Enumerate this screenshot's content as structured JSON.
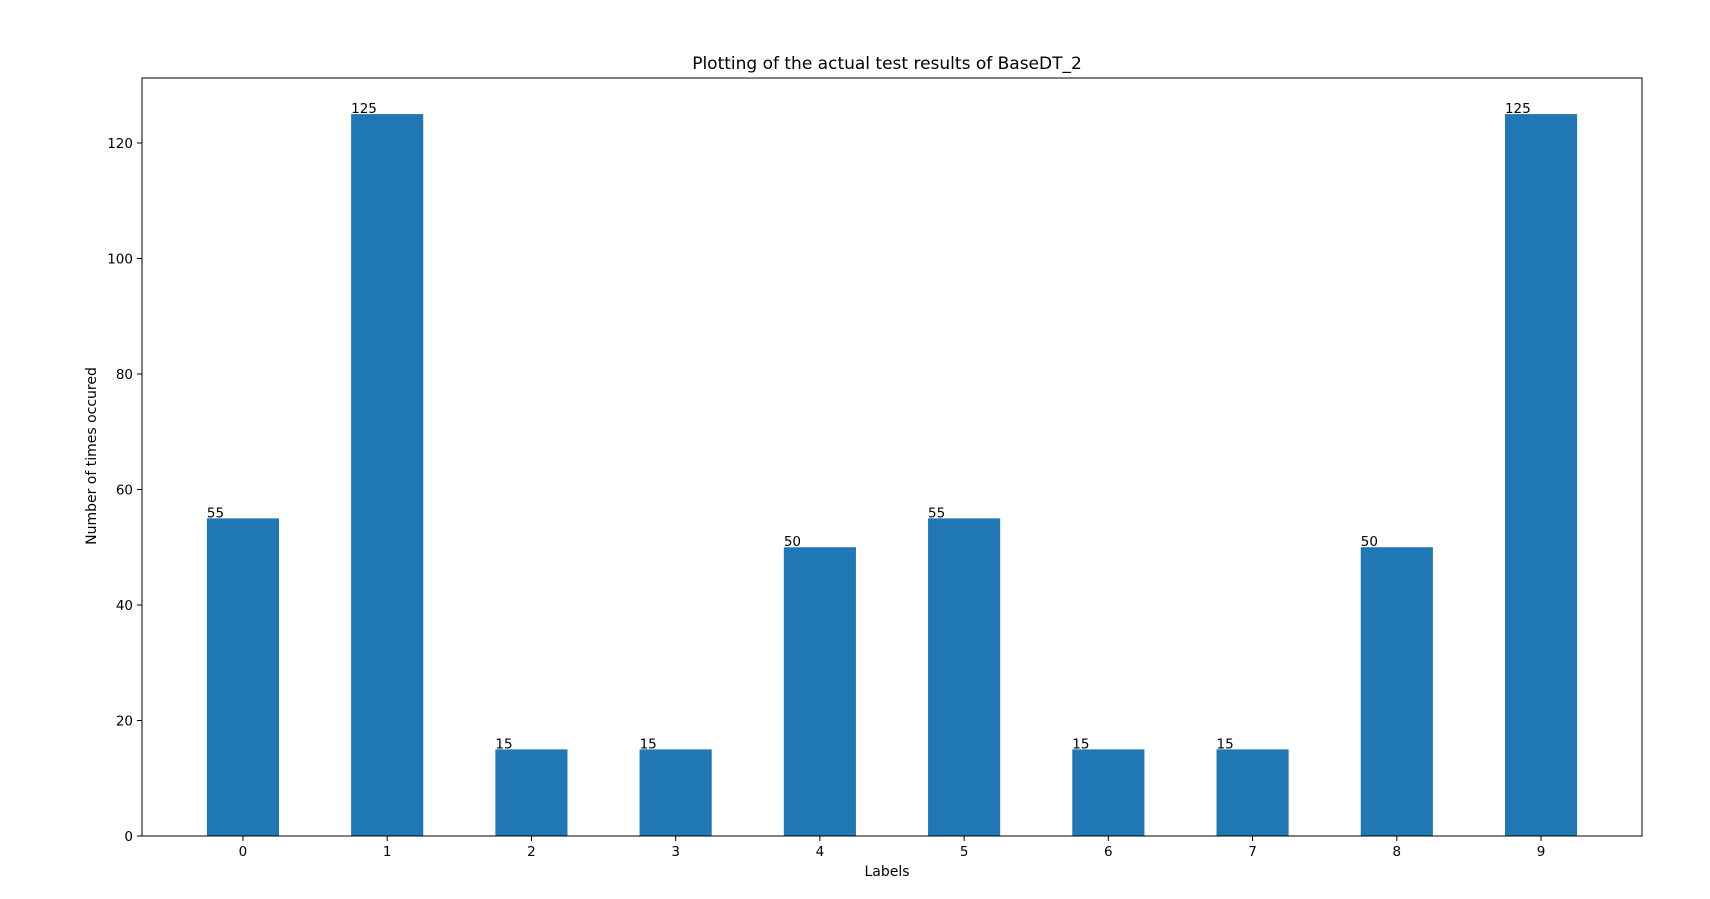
{
  "chart_data": {
    "type": "bar",
    "title": "Plotting of the actual test results of BaseDT_2",
    "xlabel": "Labels",
    "ylabel": "Number of times occured",
    "categories": [
      "0",
      "1",
      "2",
      "3",
      "4",
      "5",
      "6",
      "7",
      "8",
      "9"
    ],
    "values": [
      55,
      125,
      15,
      15,
      50,
      55,
      15,
      15,
      50,
      125
    ],
    "value_labels": [
      "55",
      "125",
      "15",
      "15",
      "50",
      "55",
      "15",
      "15",
      "50",
      "125"
    ],
    "ylim": [
      0,
      131.25
    ],
    "yticks": [
      0,
      20,
      40,
      60,
      80,
      100,
      120
    ],
    "ytick_labels": [
      "0",
      "20",
      "40",
      "60",
      "80",
      "100",
      "120"
    ],
    "grid": false,
    "bar_color": "#1f77b4"
  }
}
